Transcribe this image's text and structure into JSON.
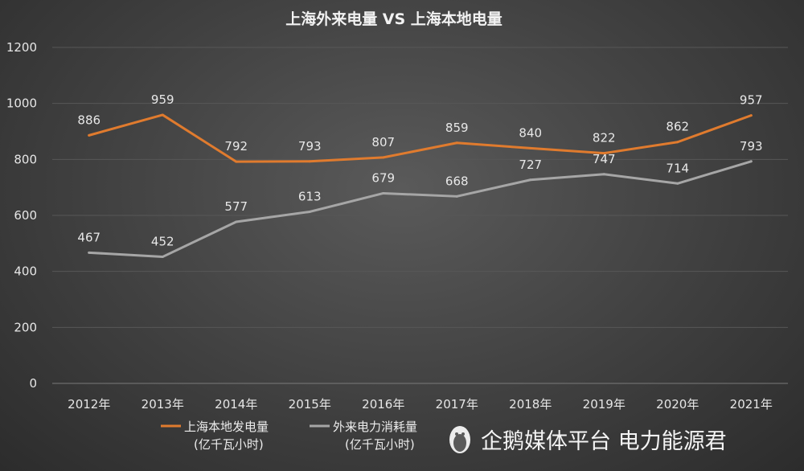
{
  "chart_data": {
    "type": "line",
    "title": "上海外来电量 VS 上海本地电量",
    "categories": [
      "2012年",
      "2013年",
      "2014年",
      "2015年",
      "2016年",
      "2017年",
      "2018年",
      "2019年",
      "2020年",
      "2021年"
    ],
    "ylim": [
      0,
      1200
    ],
    "yticks": [
      0,
      200,
      400,
      600,
      800,
      1000,
      1200
    ],
    "grid": true,
    "legend_position": "bottom-left",
    "series": [
      {
        "name": "上海本地发电量",
        "name_unit": "(亿千瓦小时)",
        "color": "#e07b2e",
        "values": [
          886,
          959,
          792,
          793,
          807,
          859,
          840,
          822,
          862,
          957
        ]
      },
      {
        "name": "外来电力消耗量",
        "name_unit": "(亿千瓦小时)",
        "color": "#a6a6a6",
        "values": [
          467,
          452,
          577,
          613,
          679,
          668,
          727,
          747,
          714,
          793
        ]
      }
    ]
  },
  "watermark": {
    "icon": "penguin-icon",
    "text": "企鹅媒体平台 电力能源君"
  }
}
